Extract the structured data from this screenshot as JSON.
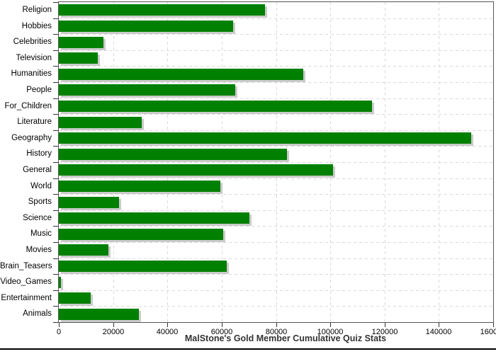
{
  "chart_data": {
    "type": "bar",
    "orientation": "horizontal",
    "title": "MalStone's Gold Member Cumulative Quiz Stats",
    "categories": [
      "Religion",
      "Hobbies",
      "Celebrities",
      "Television",
      "Humanities",
      "People",
      "For_Children",
      "Literature",
      "Geography",
      "History",
      "General",
      "World",
      "Sports",
      "Science",
      "Music",
      "Movies",
      "Brain_Teasers",
      "Video_Games",
      "Entertainment",
      "Animals"
    ],
    "values": [
      76000,
      64300,
      16400,
      14300,
      90000,
      65000,
      115300,
      30600,
      152000,
      84000,
      101000,
      59500,
      22200,
      70200,
      60600,
      18400,
      61900,
      700,
      11800,
      29400
    ],
    "xlabel": "",
    "ylabel": "",
    "xlim": [
      0,
      160000
    ],
    "x_tick_step": 20000,
    "x_tick_labels": [
      "0",
      "20000",
      "40000",
      "60000",
      "80000",
      "100000",
      "120000",
      "140000",
      "160000"
    ],
    "grid": true,
    "grid_style": "dashed",
    "legend": false,
    "colors": {
      "bar": "#008000",
      "bar_shadow": "#cbcbcb",
      "grid": "#d9d9d9",
      "plot_border": "#555555",
      "tick": "#333333",
      "text": "#000000",
      "title": "#333333",
      "background": "#ffffff",
      "frame_line": "#000000"
    }
  }
}
